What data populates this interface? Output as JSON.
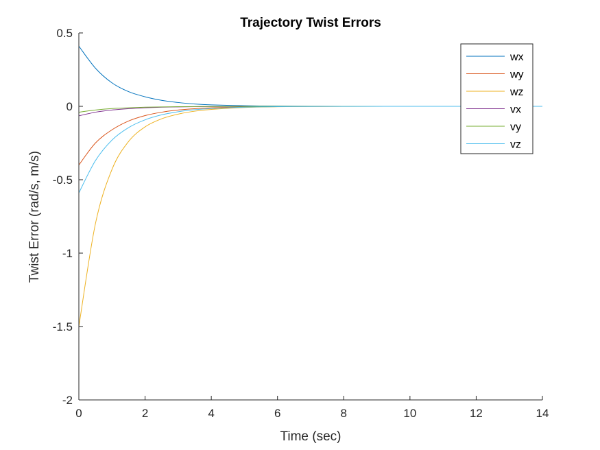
{
  "chart_data": {
    "type": "line",
    "title": "Trajectory Twist Errors",
    "xlabel": "Time (sec)",
    "ylabel": "Twist Error (rad/s, m/s)",
    "xlim": [
      0,
      14
    ],
    "ylim": [
      -2,
      0.5
    ],
    "xticks": [
      0,
      2,
      4,
      6,
      8,
      10,
      12,
      14
    ],
    "xtick_labels": [
      "0",
      "2",
      "4",
      "6",
      "8",
      "10",
      "12",
      "14"
    ],
    "yticks": [
      -2,
      -1.5,
      -1,
      -0.5,
      0,
      0.5
    ],
    "ytick_labels": [
      "-2",
      "-1.5",
      "-1",
      "-0.5",
      "0",
      "0.5"
    ],
    "grid": false,
    "legend_position": "top-right",
    "x": [
      0,
      0.5,
      1,
      1.5,
      2,
      2.5,
      3,
      3.5,
      4,
      5,
      6,
      7,
      8,
      10,
      12,
      14
    ],
    "series": [
      {
        "name": "wx",
        "color": "#0072BD",
        "values": [
          0.41,
          0.26,
          0.16,
          0.1,
          0.065,
          0.041,
          0.026,
          0.016,
          0.01,
          0.004,
          0.0016,
          0.0006,
          0.0002,
          0,
          0,
          0
        ]
      },
      {
        "name": "wy",
        "color": "#D95319",
        "values": [
          -0.4,
          -0.25,
          -0.16,
          -0.1,
          -0.063,
          -0.04,
          -0.025,
          -0.016,
          -0.01,
          -0.004,
          -0.0016,
          -0.0006,
          -0.0002,
          0,
          0,
          0
        ]
      },
      {
        "name": "wz",
        "color": "#EDB120",
        "values": [
          -1.5,
          -0.8,
          -0.43,
          -0.24,
          -0.14,
          -0.085,
          -0.053,
          -0.033,
          -0.021,
          -0.008,
          -0.003,
          -0.0012,
          -0.0005,
          0,
          0,
          0
        ]
      },
      {
        "name": "vx",
        "color": "#7E2F8E",
        "values": [
          -0.065,
          -0.04,
          -0.025,
          -0.016,
          -0.01,
          -0.006,
          -0.004,
          -0.0025,
          -0.0016,
          -0.0006,
          -0.0002,
          0,
          0,
          0,
          0,
          0
        ]
      },
      {
        "name": "vy",
        "color": "#77AC30",
        "values": [
          -0.04,
          -0.025,
          -0.015,
          -0.01,
          -0.006,
          -0.004,
          -0.0025,
          -0.0015,
          -0.001,
          -0.0004,
          -0.0001,
          0,
          0,
          0,
          0,
          0
        ]
      },
      {
        "name": "vz",
        "color": "#4DBEEE",
        "values": [
          -0.59,
          -0.37,
          -0.23,
          -0.145,
          -0.092,
          -0.058,
          -0.037,
          -0.023,
          -0.015,
          -0.006,
          -0.0024,
          -0.0009,
          -0.0004,
          0,
          0,
          0
        ]
      }
    ]
  }
}
